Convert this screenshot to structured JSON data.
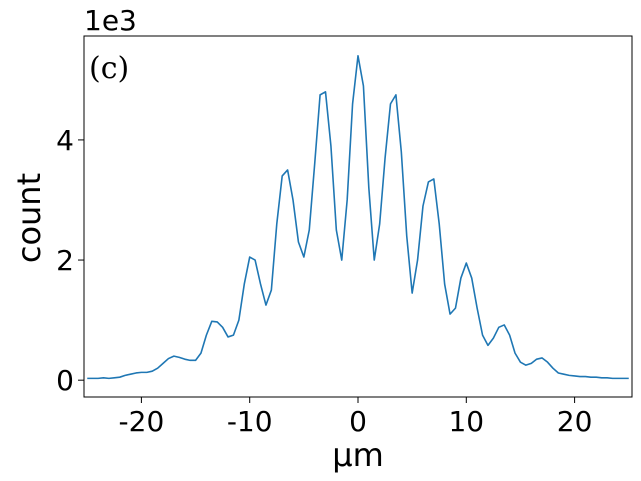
{
  "chart_data": {
    "type": "line",
    "annotation": "(c)",
    "offset_label": "1e3",
    "xlabel": "μm",
    "ylabel": "count",
    "color": "#1f77b4",
    "x": [
      -25,
      -24.5,
      -24,
      -23.5,
      -23,
      -22.5,
      -22,
      -21.5,
      -21,
      -20.5,
      -20,
      -19.5,
      -19,
      -18.5,
      -18,
      -17.5,
      -17,
      -16.5,
      -16,
      -15.5,
      -15,
      -14.5,
      -14,
      -13.5,
      -13,
      -12.5,
      -12,
      -11.5,
      -11,
      -10.5,
      -10,
      -9.5,
      -9,
      -8.5,
      -8,
      -7.5,
      -7,
      -6.5,
      -6,
      -5.5,
      -5,
      -4.5,
      -4,
      -3.5,
      -3,
      -2.5,
      -2,
      -1.5,
      -1,
      -0.5,
      0,
      0.5,
      1,
      1.5,
      2,
      2.5,
      3,
      3.5,
      4,
      4.5,
      5,
      5.5,
      6,
      6.5,
      7,
      7.5,
      8,
      8.5,
      9,
      9.5,
      10,
      10.5,
      11,
      11.5,
      12,
      12.5,
      13,
      13.5,
      14,
      14.5,
      15,
      15.5,
      16,
      16.5,
      17,
      17.5,
      18,
      18.5,
      19,
      19.5,
      20,
      20.5,
      21,
      21.5,
      22,
      22.5,
      23,
      23.5,
      24,
      24.5,
      25
    ],
    "values": [
      0.03,
      0.03,
      0.03,
      0.04,
      0.03,
      0.04,
      0.05,
      0.08,
      0.1,
      0.12,
      0.13,
      0.13,
      0.15,
      0.2,
      0.28,
      0.36,
      0.4,
      0.38,
      0.35,
      0.33,
      0.33,
      0.45,
      0.75,
      0.98,
      0.97,
      0.88,
      0.72,
      0.75,
      1.0,
      1.6,
      2.05,
      2.0,
      1.6,
      1.25,
      1.5,
      2.6,
      3.4,
      3.5,
      3.0,
      2.3,
      2.05,
      2.5,
      3.6,
      4.75,
      4.8,
      3.9,
      2.5,
      2.0,
      3.0,
      4.6,
      5.4,
      4.9,
      3.2,
      2.0,
      2.6,
      3.7,
      4.6,
      4.75,
      3.8,
      2.4,
      1.45,
      2.0,
      2.9,
      3.3,
      3.35,
      2.6,
      1.6,
      1.1,
      1.2,
      1.7,
      1.95,
      1.7,
      1.2,
      0.75,
      0.58,
      0.7,
      0.88,
      0.92,
      0.75,
      0.45,
      0.3,
      0.25,
      0.28,
      0.35,
      0.37,
      0.3,
      0.2,
      0.12,
      0.1,
      0.08,
      0.07,
      0.06,
      0.06,
      0.05,
      0.05,
      0.04,
      0.04,
      0.03,
      0.03,
      0.03,
      0.03
    ],
    "xlim": [
      -25.3,
      25.3
    ],
    "ylim": [
      -0.28,
      5.73
    ],
    "xticks": [
      -20,
      -10,
      0,
      10,
      20
    ],
    "yticks": [
      0,
      2,
      4
    ]
  }
}
